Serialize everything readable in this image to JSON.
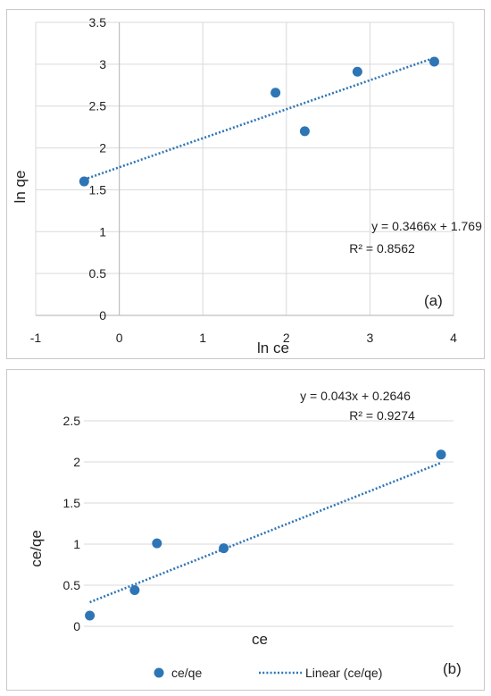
{
  "chart_data": [
    {
      "type": "scatter",
      "panel_label": "(a)",
      "xlabel": "ln ce",
      "ylabel": "ln qe",
      "xlim": [
        -1,
        4
      ],
      "ylim": [
        0,
        3.5
      ],
      "x_ticks": [
        -1,
        0,
        1,
        2,
        3,
        4
      ],
      "y_ticks": [
        0,
        0.5,
        1,
        1.5,
        2,
        2.5,
        3,
        3.5
      ],
      "grid": true,
      "series": [
        {
          "x": [
            -0.42,
            1.87,
            2.22,
            2.85,
            3.77
          ],
          "y": [
            1.6,
            2.66,
            2.2,
            2.91,
            3.03
          ]
        }
      ],
      "trendline": {
        "slope": 0.3466,
        "intercept": 1.769,
        "x_range": [
          -0.42,
          3.77
        ]
      },
      "equation": "y = 0.3466x + 1.769",
      "r_squared": "R² = 0.8562",
      "colors": {
        "marker": "#2e75b6",
        "trendline": "#2e75b6",
        "grid": "#d9d9d9"
      }
    },
    {
      "type": "scatter",
      "panel_label": "(b)",
      "xlabel": "ce",
      "ylabel": "ce/qe",
      "ylim": [
        0,
        2.5
      ],
      "y_ticks": [
        0,
        0.5,
        1,
        1.5,
        2,
        2.5
      ],
      "grid": true,
      "series": [
        {
          "name": "ce/qe",
          "x": [
            0.66,
            5.7,
            8.2,
            15.7,
            40.1
          ],
          "y": [
            0.13,
            0.44,
            1.01,
            0.95,
            2.09
          ]
        }
      ],
      "trendline": {
        "name": "Linear (ce/qe)",
        "slope": 0.043,
        "intercept": 0.2646,
        "x_range": [
          0.66,
          40.1
        ]
      },
      "equation": "y = 0.043x + 0.2646",
      "r_squared": "R² = 0.9274",
      "legend": [
        "ce/qe",
        "Linear (ce/qe)"
      ],
      "legend_position": "bottom",
      "colors": {
        "marker": "#2e75b6",
        "trendline": "#2e75b6",
        "grid": "#d9d9d9"
      }
    }
  ]
}
